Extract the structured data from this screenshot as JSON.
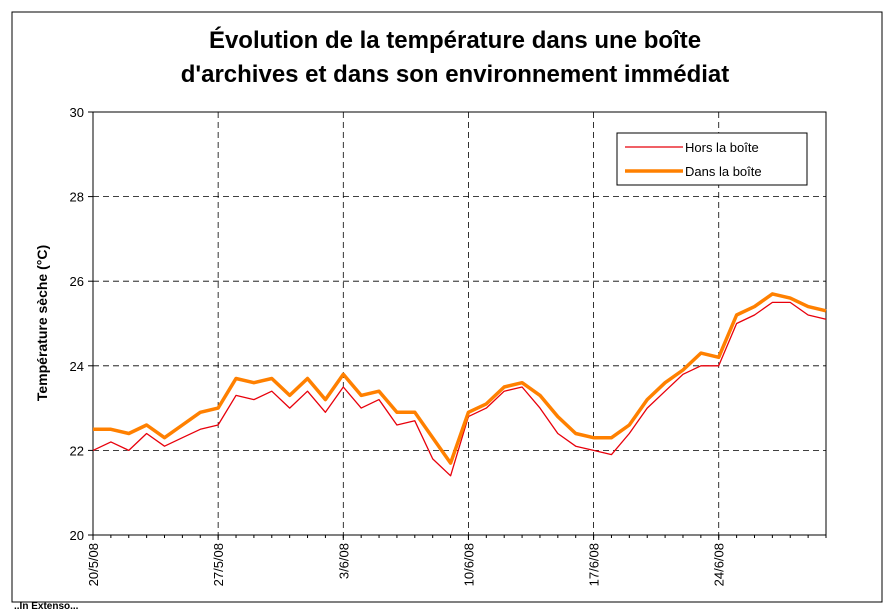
{
  "chart_data": {
    "type": "line",
    "title": [
      "Évolution de la température dans une boîte",
      "d'archives et dans son environnement immédiat"
    ],
    "y_label": "Température sèche (°C)",
    "x": [
      "2008-05-20",
      "2008-05-21",
      "2008-05-22",
      "2008-05-23",
      "2008-05-24",
      "2008-05-25",
      "2008-05-26",
      "2008-05-27",
      "2008-05-28",
      "2008-05-29",
      "2008-05-30",
      "2008-05-31",
      "2008-06-01",
      "2008-06-02",
      "2008-06-03",
      "2008-06-04",
      "2008-06-05",
      "2008-06-06",
      "2008-06-07",
      "2008-06-08",
      "2008-06-09",
      "2008-06-10",
      "2008-06-11",
      "2008-06-12",
      "2008-06-13",
      "2008-06-14",
      "2008-06-15",
      "2008-06-16",
      "2008-06-17",
      "2008-06-18",
      "2008-06-19",
      "2008-06-20",
      "2008-06-21",
      "2008-06-22",
      "2008-06-23",
      "2008-06-24",
      "2008-06-25",
      "2008-06-26",
      "2008-06-27",
      "2008-06-28",
      "2008-06-29",
      "2008-06-30"
    ],
    "series": [
      {
        "name": "Hors la boîte",
        "color": "#e8000b",
        "width": 1.3,
        "values": [
          22.0,
          22.2,
          22.0,
          22.4,
          22.1,
          22.3,
          22.5,
          22.6,
          23.3,
          23.2,
          23.4,
          23.0,
          23.4,
          22.9,
          23.5,
          23.0,
          23.2,
          22.6,
          22.7,
          21.8,
          21.4,
          22.8,
          23.0,
          23.4,
          23.5,
          23.0,
          22.4,
          22.1,
          22.0,
          21.9,
          22.4,
          23.0,
          23.4,
          23.8,
          24.0,
          24.0,
          25.0,
          25.2,
          25.5,
          25.5,
          25.2,
          25.1
        ]
      },
      {
        "name": "Dans la boîte",
        "color": "#ff8000",
        "width": 3.5,
        "values": [
          22.5,
          22.5,
          22.4,
          22.6,
          22.3,
          22.6,
          22.9,
          23.0,
          23.7,
          23.6,
          23.7,
          23.3,
          23.7,
          23.2,
          23.8,
          23.3,
          23.4,
          22.9,
          22.9,
          22.3,
          21.7,
          22.9,
          23.1,
          23.5,
          23.6,
          23.3,
          22.8,
          22.4,
          22.3,
          22.3,
          22.6,
          23.2,
          23.6,
          23.9,
          24.3,
          24.2,
          25.2,
          25.4,
          25.7,
          25.6,
          25.4,
          25.3
        ]
      }
    ],
    "xlim": [
      "2008-05-20",
      "2008-06-30"
    ],
    "xticks": [
      {
        "value": "2008-05-20",
        "label": "20/5/08"
      },
      {
        "value": "2008-05-27",
        "label": "27/5/08"
      },
      {
        "value": "2008-06-03",
        "label": "3/6/08"
      },
      {
        "value": "2008-06-10",
        "label": "10/6/08"
      },
      {
        "value": "2008-06-17",
        "label": "17/6/08"
      },
      {
        "value": "2008-06-24",
        "label": "24/6/08"
      }
    ],
    "ylim": [
      20,
      30
    ],
    "yticks": [
      20,
      22,
      24,
      26,
      28,
      30
    ],
    "grid": true,
    "legend": "top-right"
  },
  "footer": "..In Extenso..."
}
